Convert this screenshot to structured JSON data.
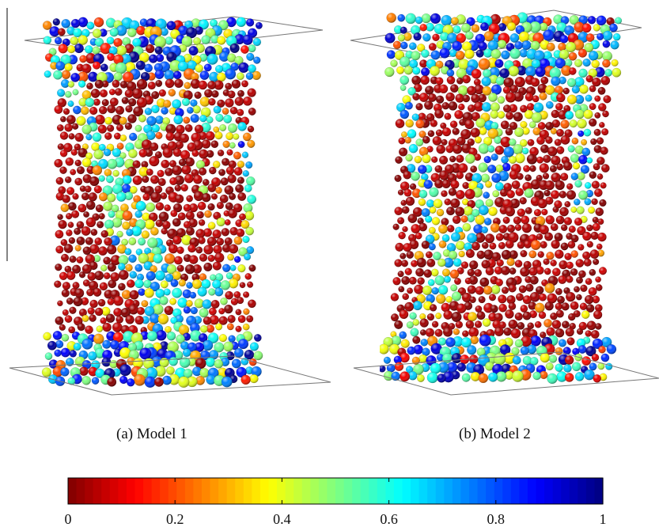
{
  "panels": [
    {
      "id": "a",
      "caption": "(a)  Model 1"
    },
    {
      "id": "b",
      "caption": "(b)  Model 2"
    }
  ],
  "colorbar": {
    "colormap": "jet-reversed",
    "range": [
      0,
      1
    ],
    "ticks": [
      "0",
      "0.2",
      "0.4",
      "0.6",
      "0.8",
      "1"
    ],
    "tick_values": [
      0,
      0.2,
      0.4,
      0.6,
      0.8,
      1
    ]
  }
}
